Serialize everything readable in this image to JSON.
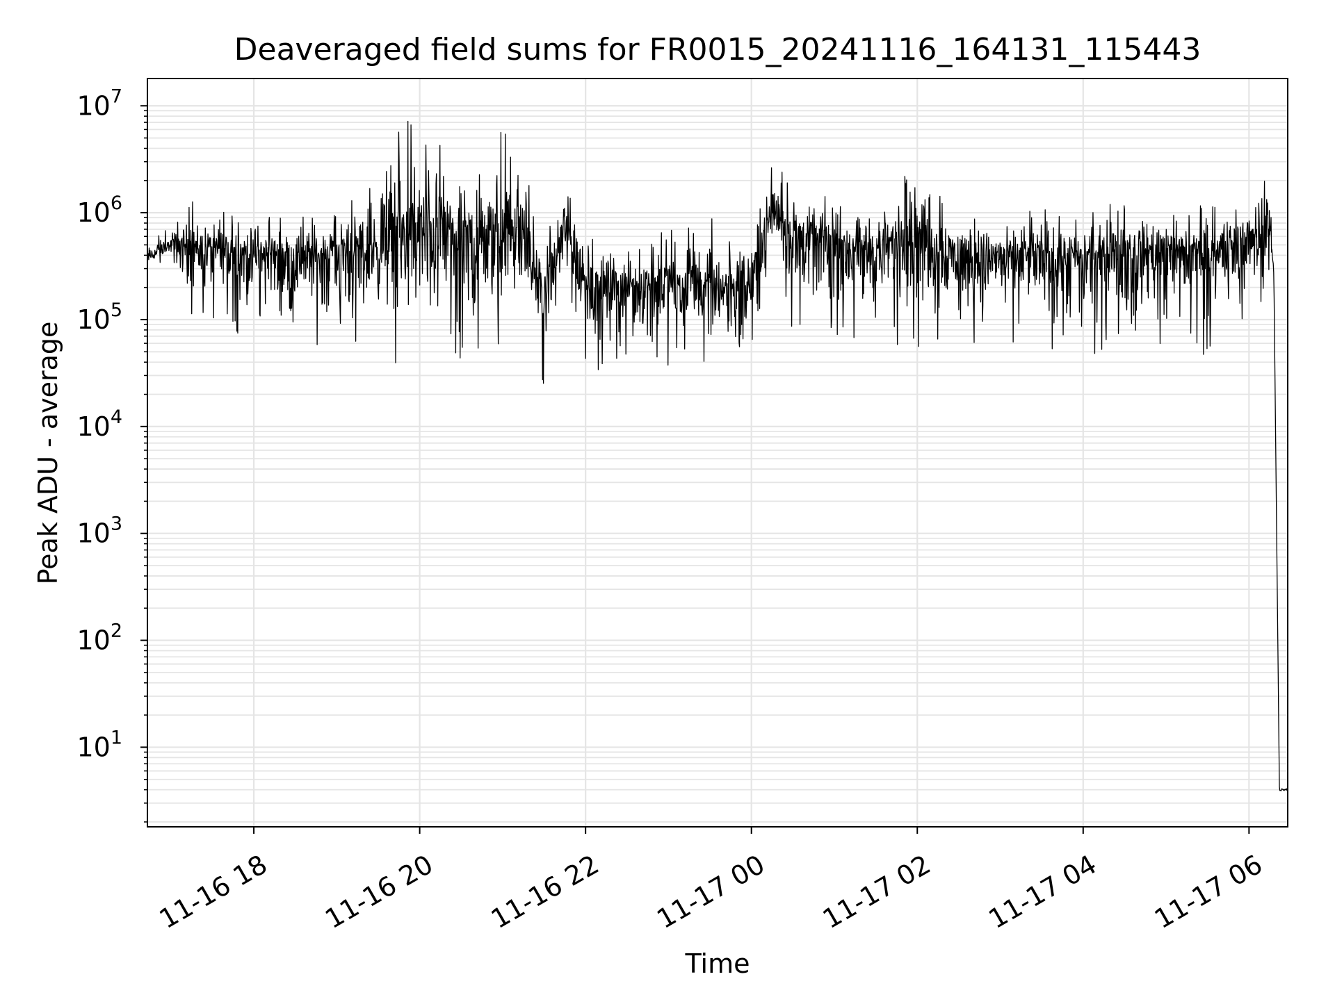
{
  "chart_data": {
    "type": "line",
    "title": "Deaveraged field sums for FR0015_20241116_164131_115443",
    "xlabel": "Time",
    "ylabel": "Peak ADU - average",
    "yscale": "log",
    "grid": true,
    "grid_color": "#e5e5e5",
    "line_color": "#000000",
    "xlim": [
      "2024-11-16 16:43",
      "2024-11-17 06:28"
    ],
    "ylim": [
      1.8,
      18000000
    ],
    "x_ticks": [
      {
        "value": "2024-11-16 18:00",
        "label": "11-16 18"
      },
      {
        "value": "2024-11-16 20:00",
        "label": "11-16 20"
      },
      {
        "value": "2024-11-16 22:00",
        "label": "11-16 22"
      },
      {
        "value": "2024-11-17 00:00",
        "label": "11-17 00"
      },
      {
        "value": "2024-11-17 02:00",
        "label": "11-17 02"
      },
      {
        "value": "2024-11-17 04:00",
        "label": "11-17 04"
      },
      {
        "value": "2024-11-17 06:00",
        "label": "11-17 06"
      }
    ],
    "y_ticks": [
      {
        "value": 10,
        "base": "10",
        "exp": "1"
      },
      {
        "value": 100,
        "base": "10",
        "exp": "2"
      },
      {
        "value": 1000,
        "base": "10",
        "exp": "3"
      },
      {
        "value": 10000,
        "base": "10",
        "exp": "4"
      },
      {
        "value": 100000,
        "base": "10",
        "exp": "5"
      },
      {
        "value": 1000000,
        "base": "10",
        "exp": "6"
      },
      {
        "value": 10000000,
        "base": "10",
        "exp": "7"
      }
    ],
    "series": [
      {
        "envelope": [
          {
            "x": "2024-11-16 16:43",
            "typical": 380000,
            "low": 300000,
            "high": 550000
          },
          {
            "x": "2024-11-16 17:00",
            "typical": 500000,
            "low": 350000,
            "high": 750000
          },
          {
            "x": "2024-11-16 17:15",
            "typical": 500000,
            "low": 90000,
            "high": 1300000
          },
          {
            "x": "2024-11-16 17:30",
            "typical": 450000,
            "low": 80000,
            "high": 1100000
          },
          {
            "x": "2024-11-16 18:00",
            "typical": 420000,
            "low": 65000,
            "high": 1000000
          },
          {
            "x": "2024-11-16 18:30",
            "typical": 400000,
            "low": 60000,
            "high": 900000
          },
          {
            "x": "2024-11-16 19:00",
            "typical": 420000,
            "low": 55000,
            "high": 1500000
          },
          {
            "x": "2024-11-16 19:30",
            "typical": 480000,
            "low": 60000,
            "high": 2800000
          },
          {
            "x": "2024-11-16 19:45",
            "typical": 550000,
            "low": 33000,
            "high": 7500000
          },
          {
            "x": "2024-11-16 20:15",
            "typical": 700000,
            "low": 45000,
            "high": 6500000
          },
          {
            "x": "2024-11-16 20:40",
            "typical": 500000,
            "low": 22000,
            "high": 3000000
          },
          {
            "x": "2024-11-16 21:00",
            "typical": 600000,
            "low": 60000,
            "high": 6000000
          },
          {
            "x": "2024-11-16 21:15",
            "typical": 600000,
            "low": 100000,
            "high": 9000000
          },
          {
            "x": "2024-11-16 21:25",
            "typical": 250000,
            "low": 40000,
            "high": 600000
          },
          {
            "x": "2024-11-16 21:30",
            "typical": 150000,
            "low": 17000,
            "high": 500000
          },
          {
            "x": "2024-11-16 21:45",
            "typical": 700000,
            "low": 300000,
            "high": 3000000
          },
          {
            "x": "2024-11-16 22:00",
            "typical": 220000,
            "low": 30000,
            "high": 600000
          },
          {
            "x": "2024-11-16 22:30",
            "typical": 210000,
            "low": 40000,
            "high": 620000
          },
          {
            "x": "2024-11-16 23:00",
            "typical": 220000,
            "low": 35000,
            "high": 700000
          },
          {
            "x": "2024-11-16 23:30",
            "typical": 200000,
            "low": 40000,
            "high": 900000
          },
          {
            "x": "2024-11-17 00:00",
            "typical": 220000,
            "low": 55000,
            "high": 800000
          },
          {
            "x": "2024-11-17 00:15",
            "typical": 1200000,
            "low": 400000,
            "high": 5500000
          },
          {
            "x": "2024-11-17 00:30",
            "typical": 600000,
            "low": 70000,
            "high": 2000000
          },
          {
            "x": "2024-11-17 01:00",
            "typical": 500000,
            "low": 60000,
            "high": 1500000
          },
          {
            "x": "2024-11-17 01:30",
            "typical": 420000,
            "low": 60000,
            "high": 1600000
          },
          {
            "x": "2024-11-17 01:55",
            "typical": 700000,
            "low": 45000,
            "high": 2500000
          },
          {
            "x": "2024-11-17 02:30",
            "typical": 400000,
            "low": 60000,
            "high": 1200000
          },
          {
            "x": "2024-11-17 03:00",
            "typical": 400000,
            "low": 60000,
            "high": 1000000
          },
          {
            "x": "2024-11-17 03:30",
            "typical": 380000,
            "low": 60000,
            "high": 1100000
          },
          {
            "x": "2024-11-17 04:00",
            "typical": 380000,
            "low": 36000,
            "high": 1000000
          },
          {
            "x": "2024-11-17 04:30",
            "typical": 450000,
            "low": 60000,
            "high": 1500000
          },
          {
            "x": "2024-11-17 05:00",
            "typical": 450000,
            "low": 55000,
            "high": 1300000
          },
          {
            "x": "2024-11-17 05:30",
            "typical": 420000,
            "low": 45000,
            "high": 1200000
          },
          {
            "x": "2024-11-17 06:00",
            "typical": 600000,
            "low": 80000,
            "high": 1300000
          },
          {
            "x": "2024-11-17 06:15",
            "typical": 700000,
            "low": 200000,
            "high": 3200000
          },
          {
            "x": "2024-11-17 06:18",
            "typical": 250000,
            "low": 200000,
            "high": 300000
          },
          {
            "x": "2024-11-17 06:22",
            "typical": 4,
            "low": 3.8,
            "high": 4.5
          },
          {
            "x": "2024-11-17 06:28",
            "typical": 4,
            "low": 3.8,
            "high": 4.5
          }
        ]
      }
    ]
  }
}
